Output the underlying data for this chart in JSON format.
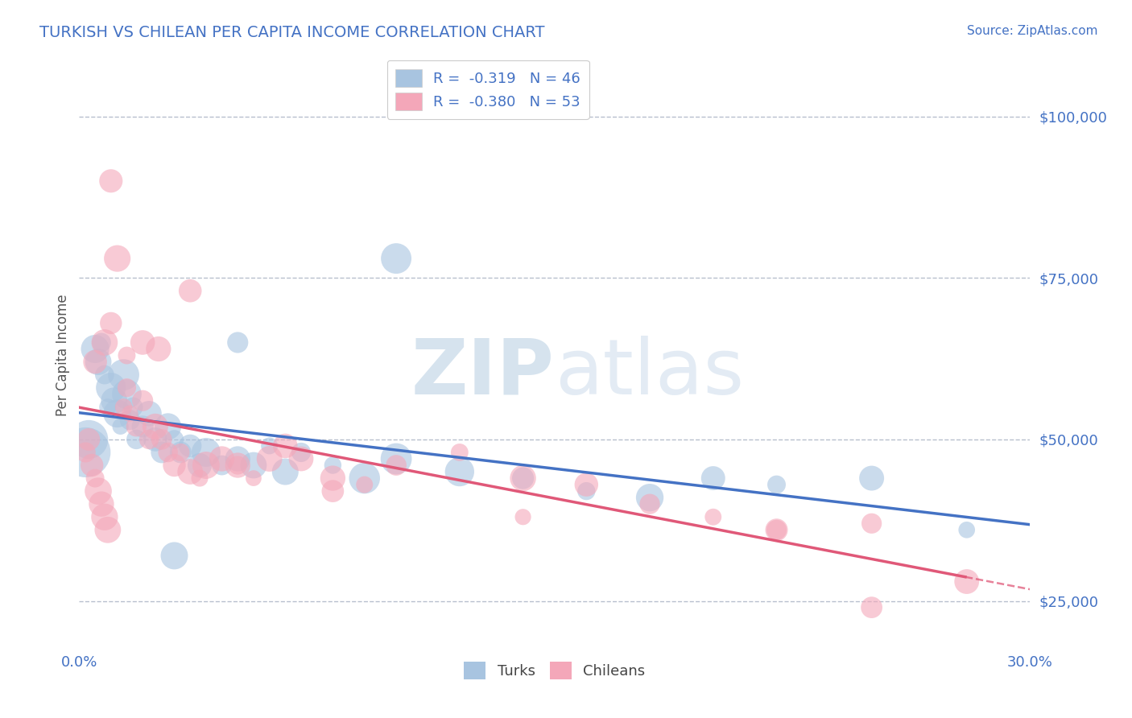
{
  "title": "TURKISH VS CHILEAN PER CAPITA INCOME CORRELATION CHART",
  "source_text": "Source: ZipAtlas.com",
  "ylabel": "Per Capita Income",
  "xlim": [
    0.0,
    0.3
  ],
  "ylim": [
    18000,
    108000
  ],
  "yticks": [
    25000,
    50000,
    75000,
    100000
  ],
  "ytick_labels": [
    "$25,000",
    "$50,000",
    "$75,000",
    "$100,000"
  ],
  "xticks": [
    0.0,
    0.05,
    0.1,
    0.15,
    0.2,
    0.25,
    0.3
  ],
  "xtick_labels_show": [
    "0.0%",
    "30.0%"
  ],
  "title_color": "#4472c4",
  "axis_color": "#4472c4",
  "grid_color": "#b0b8c8",
  "background_color": "#ffffff",
  "turks_color": "#a8c4e0",
  "chileans_color": "#f4a7b9",
  "turks_line_color": "#4472c4",
  "chileans_line_color": "#e05878",
  "legend_R1": "R =  -0.319",
  "legend_N1": "N = 46",
  "legend_R2": "R =  -0.380",
  "legend_N2": "N = 53",
  "watermark_zip": "ZIP",
  "watermark_atlas": "atlas",
  "turks_x": [
    0.002,
    0.003,
    0.005,
    0.006,
    0.007,
    0.008,
    0.009,
    0.01,
    0.011,
    0.012,
    0.013,
    0.014,
    0.015,
    0.016,
    0.017,
    0.018,
    0.02,
    0.022,
    0.024,
    0.026,
    0.028,
    0.03,
    0.032,
    0.035,
    0.038,
    0.04,
    0.045,
    0.05,
    0.055,
    0.06,
    0.065,
    0.07,
    0.08,
    0.09,
    0.1,
    0.12,
    0.14,
    0.16,
    0.18,
    0.2,
    0.22,
    0.25,
    0.28,
    0.1,
    0.05,
    0.03
  ],
  "turks_y": [
    48000,
    50000,
    64000,
    62000,
    65000,
    60000,
    55000,
    58000,
    56000,
    54000,
    52000,
    60000,
    57000,
    53000,
    55000,
    50000,
    52000,
    54000,
    50000,
    48000,
    52000,
    50000,
    48000,
    49000,
    46000,
    48000,
    46000,
    47000,
    46000,
    49000,
    45000,
    48000,
    46000,
    44000,
    47000,
    45000,
    44000,
    42000,
    41000,
    44000,
    43000,
    44000,
    36000,
    78000,
    65000,
    32000
  ],
  "chileans_x": [
    0.002,
    0.003,
    0.004,
    0.005,
    0.006,
    0.007,
    0.008,
    0.009,
    0.01,
    0.012,
    0.014,
    0.015,
    0.016,
    0.018,
    0.02,
    0.022,
    0.024,
    0.026,
    0.028,
    0.03,
    0.032,
    0.035,
    0.038,
    0.04,
    0.045,
    0.05,
    0.055,
    0.06,
    0.065,
    0.07,
    0.08,
    0.09,
    0.1,
    0.12,
    0.14,
    0.16,
    0.18,
    0.2,
    0.22,
    0.25,
    0.28,
    0.005,
    0.008,
    0.01,
    0.015,
    0.02,
    0.025,
    0.035,
    0.05,
    0.08,
    0.22,
    0.25,
    0.14
  ],
  "chileans_y": [
    48000,
    50000,
    46000,
    44000,
    42000,
    40000,
    38000,
    36000,
    90000,
    78000,
    55000,
    58000,
    54000,
    52000,
    56000,
    50000,
    52000,
    50000,
    48000,
    46000,
    48000,
    45000,
    44000,
    46000,
    47000,
    46000,
    44000,
    47000,
    49000,
    47000,
    44000,
    43000,
    46000,
    48000,
    44000,
    43000,
    40000,
    38000,
    36000,
    37000,
    28000,
    62000,
    65000,
    68000,
    63000,
    65000,
    64000,
    73000,
    46000,
    42000,
    36000,
    24000,
    38000
  ]
}
